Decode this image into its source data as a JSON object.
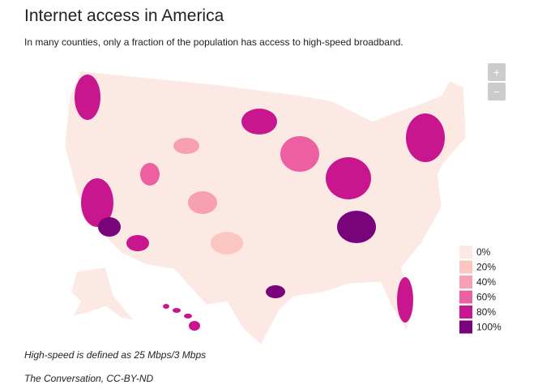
{
  "header": {
    "title": "Internet access in America",
    "subtitle": "In many counties, only a fraction of the population has access to high-speed broadband."
  },
  "map": {
    "zoom_in": "+",
    "zoom_out": "−"
  },
  "legend": {
    "items": [
      {
        "label": "0%",
        "color": "#fde9e4"
      },
      {
        "label": "20%",
        "color": "#fbc6c0"
      },
      {
        "label": "40%",
        "color": "#f79fb3"
      },
      {
        "label": "60%",
        "color": "#ec5fa0"
      },
      {
        "label": "80%",
        "color": "#c8178e"
      },
      {
        "label": "100%",
        "color": "#78037a"
      }
    ]
  },
  "footer": {
    "note": "High-speed is defined as 25 Mbps/3 Mbps",
    "source": "The Conversation, CC-BY-ND"
  }
}
